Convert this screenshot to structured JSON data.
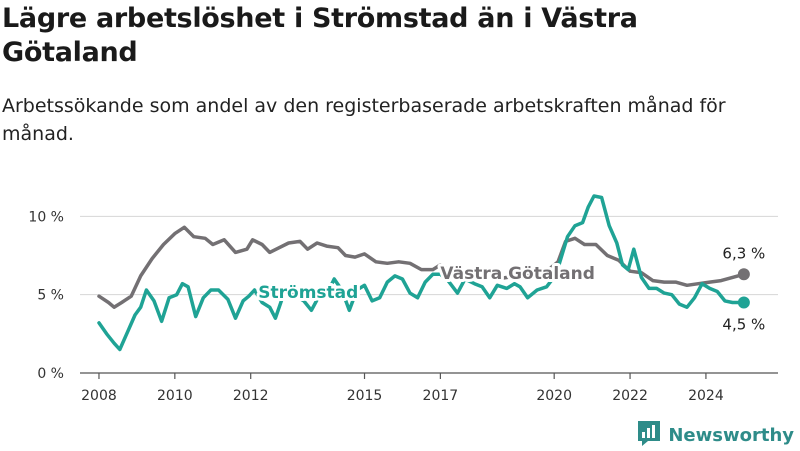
{
  "header": {
    "title": "Lägre arbetslöshet i Strömstad än i Västra Götaland",
    "subtitle": "Arbetssökande som andel av den registerbaserade arbetskraften månad för månad."
  },
  "brand": {
    "name": "Newsworthy",
    "icon": "newsworthy-logo-icon",
    "color": "#2e8c89"
  },
  "chart_data": {
    "type": "line",
    "x_unit": "year",
    "xlim": [
      2007.5,
      2025.9
    ],
    "ylim": [
      0,
      12
    ],
    "y_ticks": [
      0,
      5,
      10
    ],
    "y_tick_labels": [
      "0 %",
      "5 %",
      "10 %"
    ],
    "x_ticks": [
      2008,
      2010,
      2012,
      2015,
      2017,
      2020,
      2022,
      2024
    ],
    "x_tick_labels": [
      "2008",
      "2010",
      "2012",
      "2015",
      "2017",
      "2020",
      "2022",
      "2024"
    ],
    "grid": "horizontal",
    "legend": "inline labels",
    "series": [
      {
        "name": "Västra Götaland",
        "color": "#737073",
        "end_label": "6,3 %",
        "points": [
          [
            2008.0,
            4.9
          ],
          [
            2008.25,
            4.5
          ],
          [
            2008.4,
            4.2
          ],
          [
            2008.6,
            4.5
          ],
          [
            2008.85,
            4.9
          ],
          [
            2009.1,
            6.2
          ],
          [
            2009.4,
            7.3
          ],
          [
            2009.7,
            8.2
          ],
          [
            2010.0,
            8.9
          ],
          [
            2010.25,
            9.3
          ],
          [
            2010.5,
            8.7
          ],
          [
            2010.8,
            8.6
          ],
          [
            2011.0,
            8.2
          ],
          [
            2011.3,
            8.5
          ],
          [
            2011.6,
            7.7
          ],
          [
            2011.9,
            7.9
          ],
          [
            2012.05,
            8.5
          ],
          [
            2012.3,
            8.2
          ],
          [
            2012.5,
            7.7
          ],
          [
            2012.75,
            8.0
          ],
          [
            2013.0,
            8.3
          ],
          [
            2013.3,
            8.4
          ],
          [
            2013.5,
            7.9
          ],
          [
            2013.75,
            8.3
          ],
          [
            2014.0,
            8.1
          ],
          [
            2014.3,
            8.0
          ],
          [
            2014.5,
            7.5
          ],
          [
            2014.75,
            7.4
          ],
          [
            2015.0,
            7.6
          ],
          [
            2015.3,
            7.1
          ],
          [
            2015.6,
            7.0
          ],
          [
            2015.9,
            7.1
          ],
          [
            2016.2,
            7.0
          ],
          [
            2016.5,
            6.6
          ],
          [
            2016.8,
            6.6
          ],
          [
            2017.0,
            6.9
          ],
          [
            2017.3,
            6.5
          ],
          [
            2017.7,
            6.4
          ],
          [
            2018.1,
            6.2
          ],
          [
            2018.5,
            6.0
          ],
          [
            2019.0,
            6.2
          ],
          [
            2019.5,
            6.5
          ],
          [
            2019.85,
            6.6
          ],
          [
            2020.1,
            7.1
          ],
          [
            2020.3,
            8.4
          ],
          [
            2020.55,
            8.6
          ],
          [
            2020.8,
            8.2
          ],
          [
            2021.1,
            8.2
          ],
          [
            2021.4,
            7.5
          ],
          [
            2021.7,
            7.2
          ],
          [
            2022.0,
            6.5
          ],
          [
            2022.3,
            6.4
          ],
          [
            2022.6,
            5.9
          ],
          [
            2022.9,
            5.8
          ],
          [
            2023.2,
            5.8
          ],
          [
            2023.5,
            5.6
          ],
          [
            2023.8,
            5.7
          ],
          [
            2024.1,
            5.8
          ],
          [
            2024.4,
            5.9
          ],
          [
            2024.7,
            6.1
          ],
          [
            2025.0,
            6.3
          ]
        ]
      },
      {
        "name": "Strömstad",
        "color": "#1fa395",
        "end_label": "4,5 %",
        "points": [
          [
            2008.0,
            3.2
          ],
          [
            2008.2,
            2.5
          ],
          [
            2008.4,
            1.9
          ],
          [
            2008.55,
            1.5
          ],
          [
            2008.75,
            2.6
          ],
          [
            2008.95,
            3.7
          ],
          [
            2009.1,
            4.2
          ],
          [
            2009.25,
            5.3
          ],
          [
            2009.45,
            4.6
          ],
          [
            2009.65,
            3.3
          ],
          [
            2009.85,
            4.8
          ],
          [
            2010.05,
            5.0
          ],
          [
            2010.2,
            5.7
          ],
          [
            2010.35,
            5.5
          ],
          [
            2010.55,
            3.6
          ],
          [
            2010.75,
            4.8
          ],
          [
            2010.95,
            5.3
          ],
          [
            2011.15,
            5.3
          ],
          [
            2011.4,
            4.7
          ],
          [
            2011.6,
            3.5
          ],
          [
            2011.8,
            4.6
          ],
          [
            2011.95,
            4.9
          ],
          [
            2012.1,
            5.3
          ],
          [
            2012.3,
            4.5
          ],
          [
            2012.5,
            4.2
          ],
          [
            2012.65,
            3.5
          ],
          [
            2012.85,
            4.9
          ],
          [
            2013.05,
            5.1
          ],
          [
            2013.2,
            4.9
          ],
          [
            2013.4,
            4.6
          ],
          [
            2013.6,
            4.0
          ],
          [
            2013.8,
            4.9
          ],
          [
            2014.0,
            5.0
          ],
          [
            2014.2,
            6.0
          ],
          [
            2014.4,
            5.3
          ],
          [
            2014.6,
            4.0
          ],
          [
            2014.8,
            5.3
          ],
          [
            2015.0,
            5.6
          ],
          [
            2015.2,
            4.6
          ],
          [
            2015.4,
            4.8
          ],
          [
            2015.6,
            5.8
          ],
          [
            2015.8,
            6.2
          ],
          [
            2016.0,
            6.0
          ],
          [
            2016.2,
            5.1
          ],
          [
            2016.4,
            4.8
          ],
          [
            2016.6,
            5.8
          ],
          [
            2016.8,
            6.3
          ],
          [
            2017.0,
            6.3
          ],
          [
            2017.2,
            5.9
          ],
          [
            2017.45,
            5.1
          ],
          [
            2017.65,
            6.0
          ],
          [
            2017.9,
            5.7
          ],
          [
            2018.1,
            5.5
          ],
          [
            2018.3,
            4.8
          ],
          [
            2018.5,
            5.6
          ],
          [
            2018.75,
            5.4
          ],
          [
            2018.95,
            5.7
          ],
          [
            2019.1,
            5.5
          ],
          [
            2019.3,
            4.8
          ],
          [
            2019.55,
            5.3
          ],
          [
            2019.8,
            5.5
          ],
          [
            2020.05,
            6.3
          ],
          [
            2020.2,
            7.5
          ],
          [
            2020.35,
            8.7
          ],
          [
            2020.55,
            9.4
          ],
          [
            2020.75,
            9.6
          ],
          [
            2020.9,
            10.6
          ],
          [
            2021.05,
            11.3
          ],
          [
            2021.25,
            11.2
          ],
          [
            2021.45,
            9.4
          ],
          [
            2021.65,
            8.3
          ],
          [
            2021.8,
            6.9
          ],
          [
            2021.95,
            6.6
          ],
          [
            2022.1,
            7.9
          ],
          [
            2022.3,
            6.1
          ],
          [
            2022.5,
            5.4
          ],
          [
            2022.7,
            5.4
          ],
          [
            2022.9,
            5.1
          ],
          [
            2023.1,
            5.0
          ],
          [
            2023.3,
            4.4
          ],
          [
            2023.5,
            4.2
          ],
          [
            2023.7,
            4.8
          ],
          [
            2023.9,
            5.7
          ],
          [
            2024.1,
            5.4
          ],
          [
            2024.3,
            5.2
          ],
          [
            2024.5,
            4.6
          ],
          [
            2024.7,
            4.5
          ],
          [
            2025.0,
            4.5
          ]
        ]
      }
    ]
  }
}
